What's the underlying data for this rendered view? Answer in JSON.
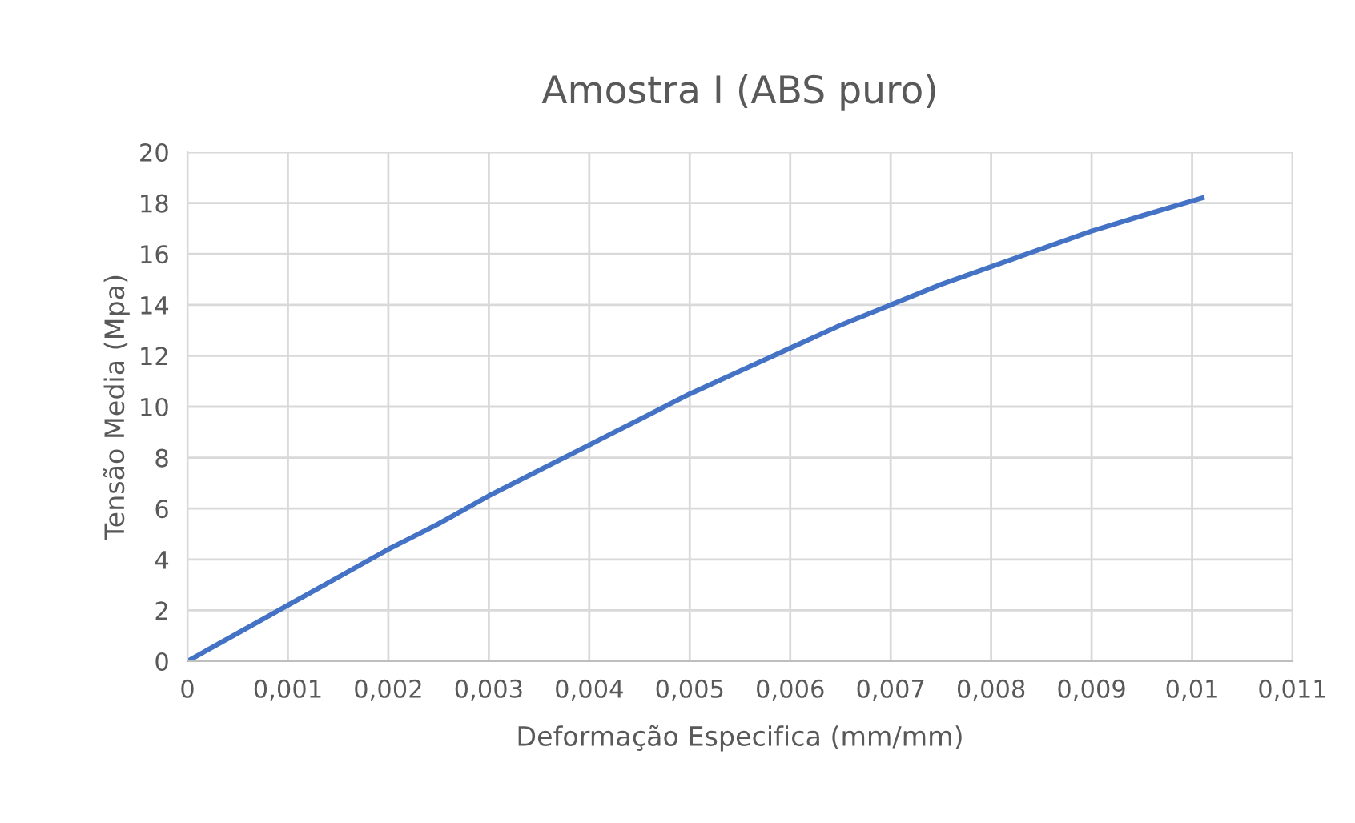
{
  "chart_data": {
    "type": "line",
    "title": "Amostra I (ABS puro)",
    "xlabel": "Deformação Especifica (mm/mm)",
    "ylabel": "Tensão Media (Mpa)",
    "series": [
      {
        "color": "#4472c4",
        "x": [
          0,
          0.0005,
          0.001,
          0.0015,
          0.002,
          0.0025,
          0.003,
          0.0035,
          0.004,
          0.0045,
          0.005,
          0.0055,
          0.006,
          0.0065,
          0.007,
          0.0075,
          0.008,
          0.0085,
          0.009,
          0.0095,
          0.0101
        ],
        "values": [
          0,
          1.1,
          2.2,
          3.3,
          4.4,
          5.4,
          6.5,
          7.5,
          8.5,
          9.5,
          10.5,
          11.4,
          12.3,
          13.2,
          14.0,
          14.8,
          15.5,
          16.2,
          16.9,
          17.5,
          18.2
        ]
      }
    ],
    "xlim": [
      0,
      0.011
    ],
    "ylim": [
      0,
      20
    ],
    "xticks": [
      0,
      {
        "value": 0.001,
        "label": "0,001"
      },
      {
        "value": 0.002,
        "label": "0,002"
      },
      {
        "value": 0.003,
        "label": "0,003"
      },
      {
        "value": 0.004,
        "label": "0,004"
      },
      {
        "value": 0.005,
        "label": "0,005"
      },
      {
        "value": 0.006,
        "label": "0,006"
      },
      {
        "value": 0.007,
        "label": "0,007"
      },
      {
        "value": 0.008,
        "label": "0,008"
      },
      {
        "value": 0.009,
        "label": "0,009"
      },
      {
        "value": 0.01,
        "label": "0,01"
      },
      {
        "value": 0.011,
        "label": "0,011"
      }
    ],
    "yticks": [
      0,
      2,
      4,
      6,
      8,
      10,
      12,
      14,
      16,
      18,
      20
    ],
    "grid": true,
    "marker": "none",
    "line_style": "solid"
  }
}
